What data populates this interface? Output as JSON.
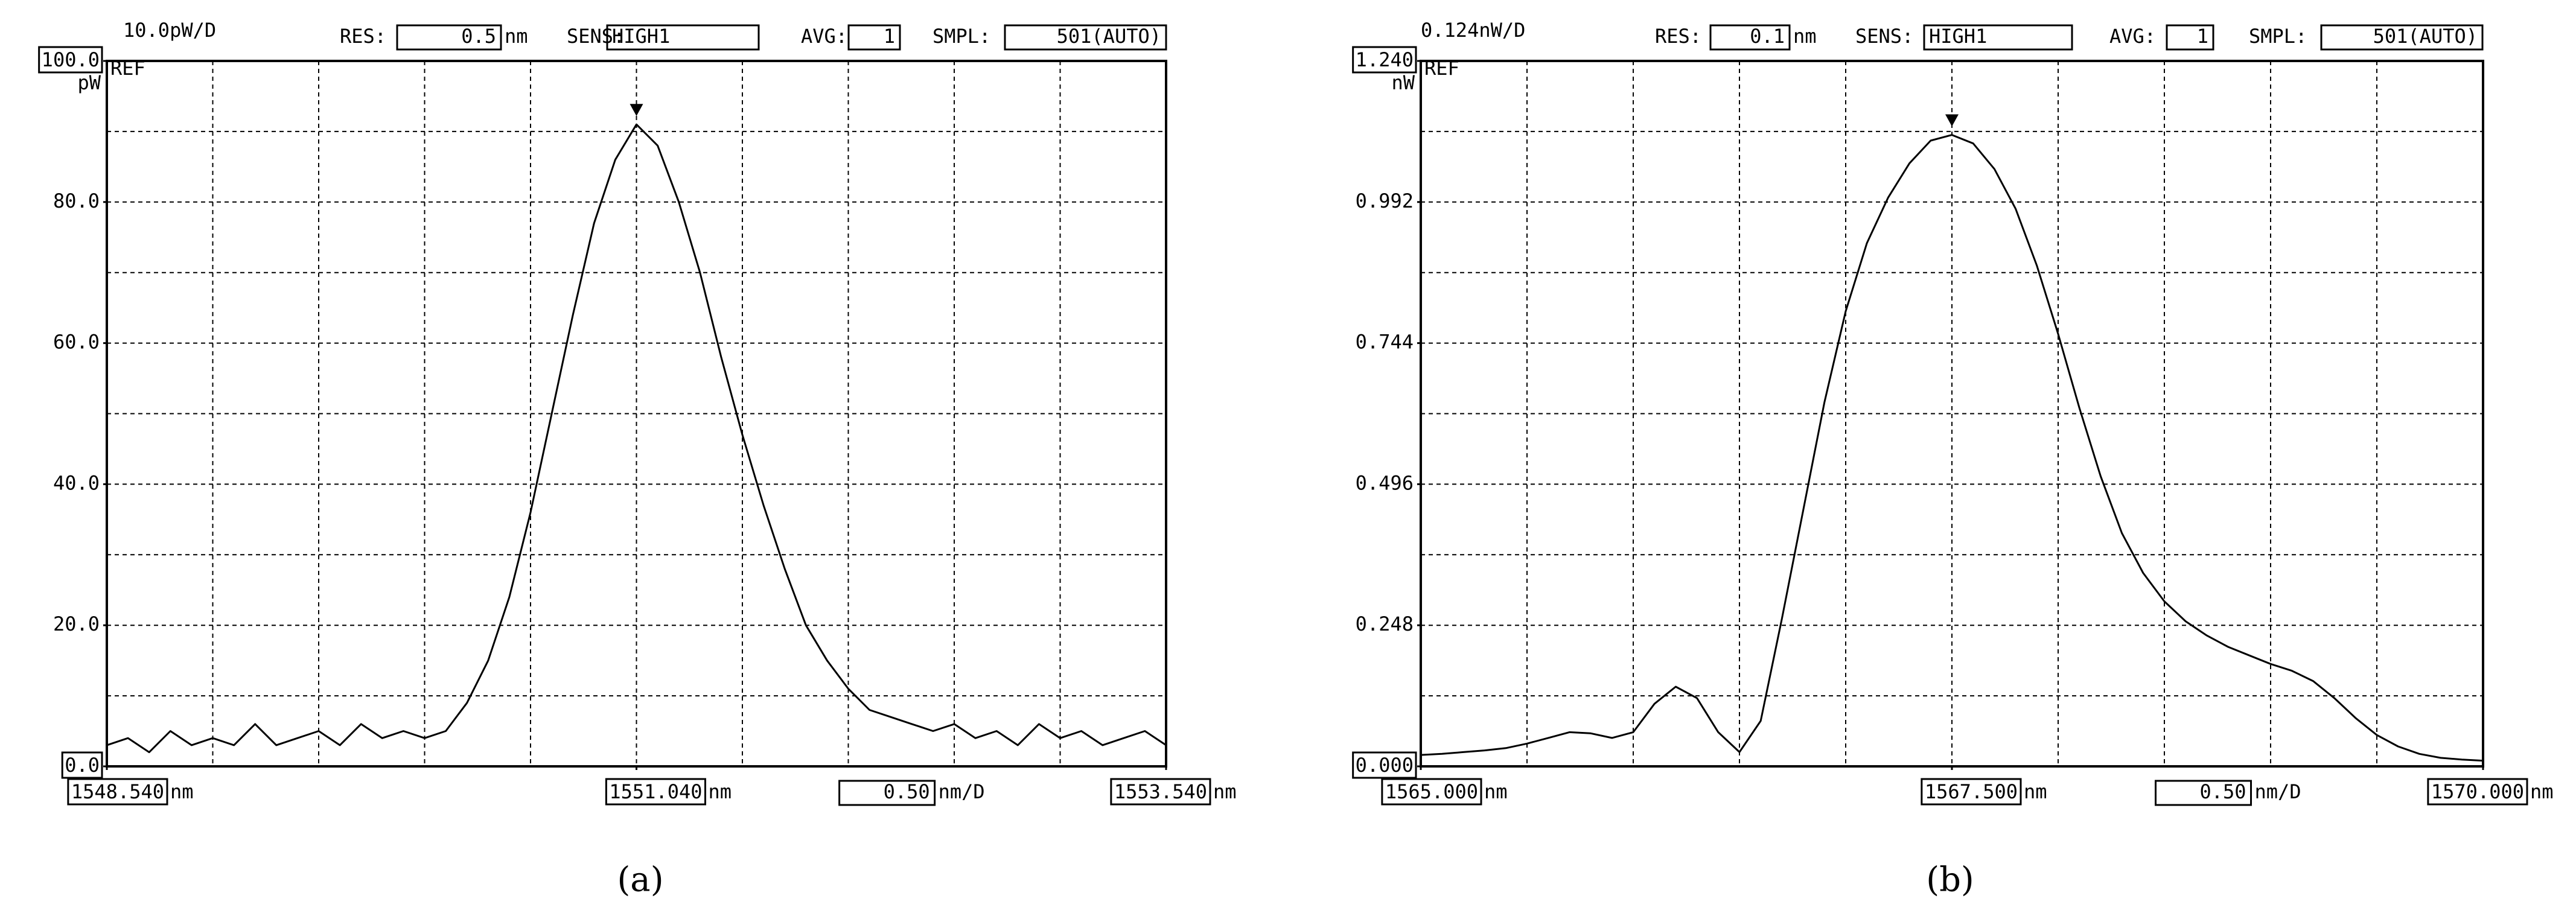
{
  "chart_data": [
    {
      "type": "line",
      "caption": "(a)",
      "scale_label": "10.0pW/D",
      "settings": {
        "res_label": "RES:",
        "res": 0.5,
        "res_unit": "nm",
        "sens_label": "SENS:",
        "sens": "HIGH1",
        "avg_label": "AVG:",
        "avg": 1,
        "smpl_label": "SMPL:",
        "smpl": "501(AUTO)"
      },
      "y_unit": "pW",
      "ref_label": "REF",
      "x_unit": "nm",
      "span": "0.50",
      "span_unit": "nm/D",
      "x": [
        1548.54,
        1548.64,
        1548.74,
        1548.84,
        1548.94,
        1549.04,
        1549.14,
        1549.24,
        1549.34,
        1549.44,
        1549.54,
        1549.64,
        1549.74,
        1549.84,
        1549.94,
        1550.04,
        1550.14,
        1550.24,
        1550.34,
        1550.44,
        1550.54,
        1550.64,
        1550.74,
        1550.84,
        1550.94,
        1551.04,
        1551.14,
        1551.24,
        1551.34,
        1551.44,
        1551.54,
        1551.64,
        1551.74,
        1551.84,
        1551.94,
        1552.04,
        1552.14,
        1552.24,
        1552.34,
        1552.44,
        1552.54,
        1552.64,
        1552.74,
        1552.84,
        1552.94,
        1553.04,
        1553.14,
        1553.24,
        1553.34,
        1553.44,
        1553.54
      ],
      "series": [
        {
          "color": "#000000",
          "values": [
            3,
            4,
            2,
            5,
            3,
            4,
            3,
            6,
            3,
            4,
            5,
            3,
            6,
            4,
            5,
            4,
            5,
            9,
            15,
            24,
            36,
            50,
            64,
            77,
            86,
            91,
            88,
            80,
            70,
            58,
            47,
            37,
            28,
            20,
            15,
            11,
            8,
            7,
            6,
            5,
            6,
            4,
            5,
            3,
            6,
            4,
            5,
            3,
            4,
            5,
            3
          ]
        }
      ],
      "xlim": [
        1548.54,
        1553.54
      ],
      "xticks": [
        {
          "value": 1548.54,
          "label": "1548.540"
        },
        {
          "value": 1551.04,
          "label": "1551.040"
        },
        {
          "value": 1553.54,
          "label": "1553.540"
        }
      ],
      "xgrid": [
        1548.54,
        1549.04,
        1549.54,
        1550.04,
        1550.54,
        1551.04,
        1551.54,
        1552.04,
        1552.54,
        1553.04,
        1553.54
      ],
      "ylim": [
        0,
        100
      ],
      "yticks": [
        {
          "value": 0,
          "label": "0.0"
        },
        {
          "value": 20,
          "label": "20.0"
        },
        {
          "value": 40,
          "label": "40.0"
        },
        {
          "value": 60,
          "label": "60.0"
        },
        {
          "value": 80,
          "label": "80.0"
        },
        {
          "value": 100,
          "label": "100.0"
        }
      ],
      "ygrid": [
        0,
        10,
        20,
        30,
        40,
        50,
        60,
        70,
        80,
        90,
        100
      ],
      "grid": true
    },
    {
      "type": "line",
      "caption": "(b)",
      "scale_label": "0.124nW/D",
      "settings": {
        "res_label": "RES:",
        "res": 0.1,
        "res_unit": "nm",
        "sens_label": "SENS:",
        "sens": "HIGH1",
        "avg_label": "AVG:",
        "avg": 1,
        "smpl_label": "SMPL:",
        "smpl": "501(AUTO)"
      },
      "y_unit": "nW",
      "ref_label": "REF",
      "x_unit": "nm",
      "span": "0.50",
      "span_unit": "nm/D",
      "x": [
        1565.0,
        1565.1,
        1565.2,
        1565.3,
        1565.4,
        1565.5,
        1565.6,
        1565.7,
        1565.8,
        1565.9,
        1566.0,
        1566.1,
        1566.2,
        1566.3,
        1566.4,
        1566.5,
        1566.6,
        1566.7,
        1566.8,
        1566.9,
        1567.0,
        1567.1,
        1567.2,
        1567.3,
        1567.4,
        1567.5,
        1567.6,
        1567.7,
        1567.8,
        1567.9,
        1568.0,
        1568.1,
        1568.2,
        1568.3,
        1568.4,
        1568.5,
        1568.6,
        1568.7,
        1568.8,
        1568.9,
        1569.0,
        1569.1,
        1569.2,
        1569.3,
        1569.4,
        1569.5,
        1569.6,
        1569.7,
        1569.8,
        1569.9,
        1570.0
      ],
      "series": [
        {
          "color": "#000000",
          "values": [
            0.02,
            0.022,
            0.025,
            0.028,
            0.032,
            0.04,
            0.05,
            0.06,
            0.058,
            0.05,
            0.06,
            0.11,
            0.14,
            0.12,
            0.06,
            0.025,
            0.08,
            0.26,
            0.45,
            0.64,
            0.8,
            0.92,
            1.0,
            1.06,
            1.1,
            1.11,
            1.095,
            1.05,
            0.98,
            0.88,
            0.76,
            0.63,
            0.51,
            0.41,
            0.34,
            0.29,
            0.255,
            0.23,
            0.21,
            0.195,
            0.18,
            0.168,
            0.15,
            0.12,
            0.085,
            0.055,
            0.035,
            0.022,
            0.015,
            0.012,
            0.01
          ]
        }
      ],
      "xlim": [
        1565.0,
        1570.0
      ],
      "xticks": [
        {
          "value": 1565.0,
          "label": "1565.000"
        },
        {
          "value": 1567.5,
          "label": "1567.500"
        },
        {
          "value": 1570.0,
          "label": "1570.000"
        }
      ],
      "xgrid": [
        1565.0,
        1565.5,
        1566.0,
        1566.5,
        1567.0,
        1567.5,
        1568.0,
        1568.5,
        1569.0,
        1569.5,
        1570.0
      ],
      "ylim": [
        0,
        1.24
      ],
      "yticks": [
        {
          "value": 0,
          "label": "0.000"
        },
        {
          "value": 0.248,
          "label": "0.248"
        },
        {
          "value": 0.496,
          "label": "0.496"
        },
        {
          "value": 0.744,
          "label": "0.744"
        },
        {
          "value": 0.992,
          "label": "0.992"
        },
        {
          "value": 1.24,
          "label": "1.240"
        }
      ],
      "ygrid": [
        0,
        0.124,
        0.248,
        0.372,
        0.496,
        0.62,
        0.744,
        0.868,
        0.992,
        1.116,
        1.24
      ],
      "grid": true
    }
  ]
}
